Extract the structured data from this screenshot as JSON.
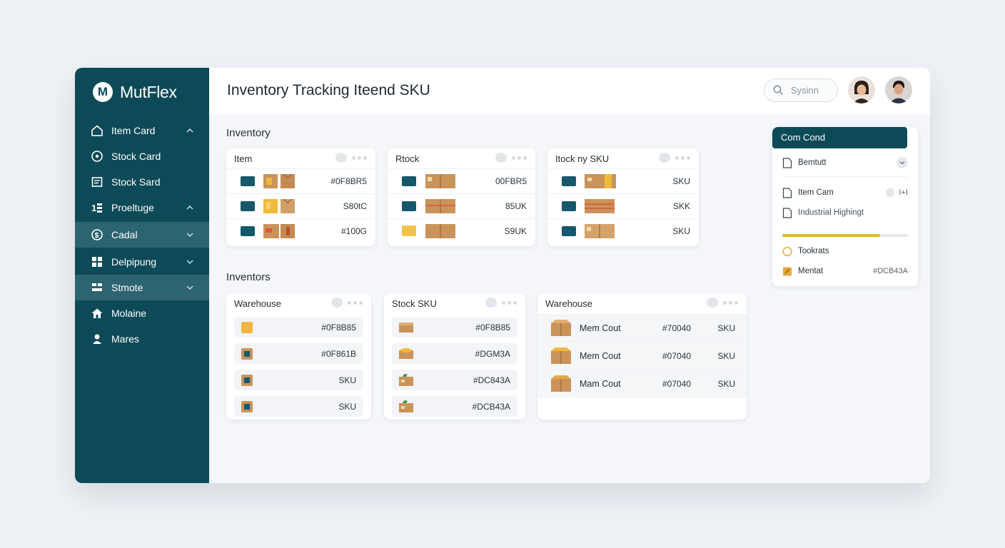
{
  "brand": {
    "name": "MutFlex",
    "logo_letter": "M"
  },
  "sidebar": {
    "items": [
      {
        "label": "Item Card",
        "icon": "home-icon",
        "chevron": "up"
      },
      {
        "label": "Stock Card",
        "icon": "clock-icon",
        "chevron": ""
      },
      {
        "label": "Stock Sard",
        "icon": "document-icon",
        "chevron": ""
      },
      {
        "label": "Proeltuge",
        "icon": "filter-icon",
        "chevron": "up"
      },
      {
        "label": "Cadal",
        "icon": "dollar-icon",
        "chevron": "down",
        "active": true
      },
      {
        "label": "Delpipung",
        "icon": "grid-icon",
        "chevron": "down"
      },
      {
        "label": "Stmote",
        "icon": "list-icon",
        "chevron": "down",
        "active": true
      },
      {
        "label": "Molaine",
        "icon": "house-icon",
        "chevron": ""
      },
      {
        "label": "Mares",
        "icon": "user-icon",
        "chevron": ""
      }
    ]
  },
  "header": {
    "title": "Inventory Tracking Iteend SKU",
    "search_placeholder": "Sysinn"
  },
  "inventory": {
    "title": "Inventory",
    "cards": [
      {
        "header": "Item",
        "rows": [
          "#0F8BR5",
          "S80tC",
          "#100G"
        ]
      },
      {
        "header": "Rtock",
        "rows": [
          "00FBR5",
          "85UK",
          "S9UK"
        ]
      },
      {
        "header": "Itock ny SKU",
        "rows": [
          "SKU",
          "SKK",
          "SKU"
        ]
      }
    ]
  },
  "inventors": {
    "title": "Inventors",
    "cards": [
      {
        "header": "Warehouse",
        "rows": [
          "#0F8B85",
          "#0F861B",
          "SKU",
          "SKU"
        ]
      },
      {
        "header": "Stock SKU",
        "rows": [
          "#0F8B85",
          "#DGM3A",
          "#DC843A",
          "#DCB43A"
        ]
      }
    ],
    "warehouse": {
      "header": "Warehouse",
      "rows": [
        {
          "name": "Mem Cout",
          "code": "#70040",
          "sku": "SKU"
        },
        {
          "name": "Mem Cout",
          "code": "#07040",
          "sku": "SKU"
        },
        {
          "name": "Mam Cout",
          "code": "#07040",
          "sku": "SKU"
        }
      ]
    }
  },
  "panel": {
    "title": "Com Cond",
    "items": [
      {
        "label": "Bemtutt",
        "end": ""
      },
      {
        "label": "Item Cam",
        "end": "I+I"
      },
      {
        "label": "Industrial Highingt",
        "end": ""
      },
      {
        "label": "Tookrats",
        "end": ""
      },
      {
        "label": "Mentat",
        "end": "#DCB43A"
      }
    ],
    "progress": 0.78
  },
  "colors": {
    "sidebar": "#0d4a57",
    "active": "#2c6470",
    "accent": "#e5b33f",
    "teal_box": "#14586a",
    "carton": "#c9935a"
  }
}
